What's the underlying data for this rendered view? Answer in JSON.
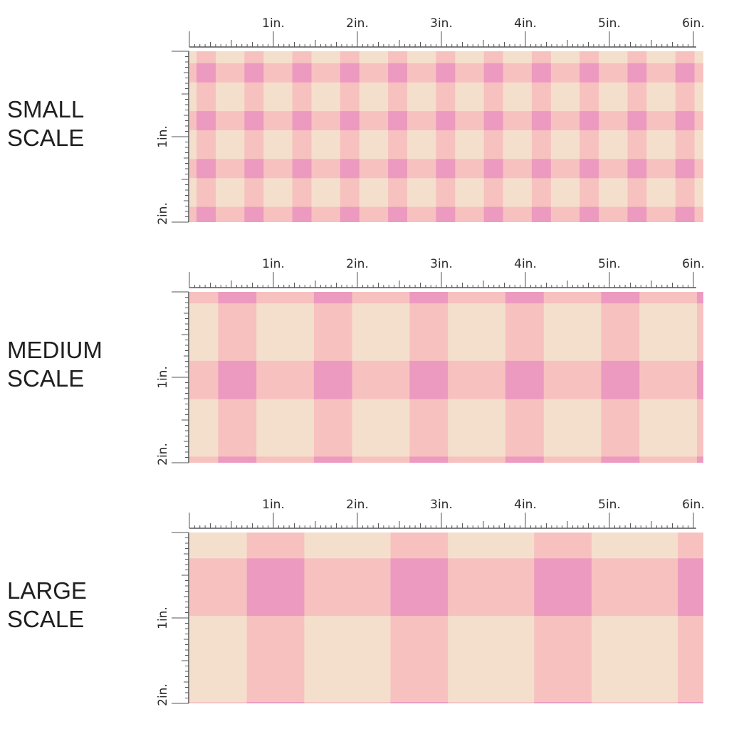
{
  "panels": [
    {
      "id": "small",
      "label_lines": [
        "SMALL",
        "SCALE"
      ],
      "inches_per_repeat": 0.57
    },
    {
      "id": "medium",
      "label_lines": [
        "MEDIUM",
        "SCALE"
      ],
      "inches_per_repeat": 1.14
    },
    {
      "id": "large",
      "label_lines": [
        "LARGE",
        "SCALE"
      ],
      "inches_per_repeat": 1.71
    }
  ],
  "ruler": {
    "top_labels": [
      "1in.",
      "2in.",
      "3in.",
      "4in.",
      "5in.",
      "6in."
    ],
    "side_labels": [
      "1in.",
      "2in."
    ]
  },
  "colors": {
    "cream": "#f4dfcd",
    "light_pink": "#f7c1c0",
    "dark_pink": "#ec9ac0",
    "ruler": "#555555"
  }
}
